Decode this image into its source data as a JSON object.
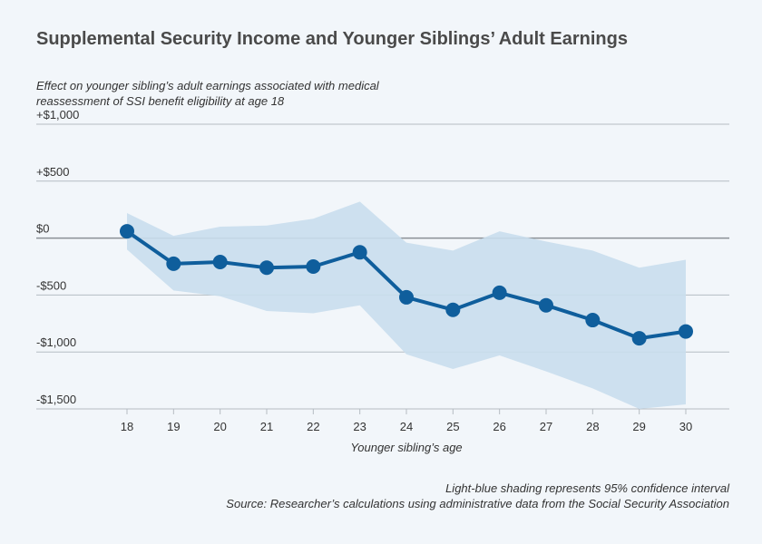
{
  "title": "Supplemental Security Income and Younger Siblings’ Adult Earnings",
  "subtitle": "Effect on younger sibling’s adult earnings associated with medical reassessment of SSI benefit eligibility at age 18",
  "footer": {
    "note": "Light-blue shading represents 95% confidence interval",
    "source": "Source: Researcher’s calculations using administrative data from the Social Security Association"
  },
  "colors": {
    "line": "#0f5e9c",
    "band": "#c9deed",
    "grid": "#b5bcc3",
    "zero": "#8a9096",
    "background": "#f2f6fa"
  },
  "chart_data": {
    "type": "line",
    "xlabel": "Younger sibling’s age",
    "ylabel": "",
    "ylim": [
      -1500,
      1000
    ],
    "y_ticks": [
      1000,
      500,
      0,
      -500,
      -1000,
      -1500
    ],
    "y_tick_labels": [
      "+$1,000",
      "+$500",
      "$0",
      "-$500",
      "-$1,000",
      "-$1,500"
    ],
    "x": [
      18,
      19,
      20,
      21,
      22,
      23,
      24,
      25,
      26,
      27,
      28,
      29,
      30
    ],
    "series": [
      {
        "values": [
          60,
          -225,
          -210,
          -260,
          -250,
          -125,
          -520,
          -630,
          -480,
          -590,
          -720,
          -880,
          -820
        ],
        "ci_upper": [
          220,
          20,
          100,
          110,
          170,
          320,
          -40,
          -110,
          60,
          -30,
          -110,
          -260,
          -190
        ],
        "ci_lower": [
          -100,
          -460,
          -510,
          -640,
          -660,
          -590,
          -1020,
          -1150,
          -1030,
          -1170,
          -1320,
          -1500,
          -1460
        ]
      }
    ],
    "grid": true
  }
}
